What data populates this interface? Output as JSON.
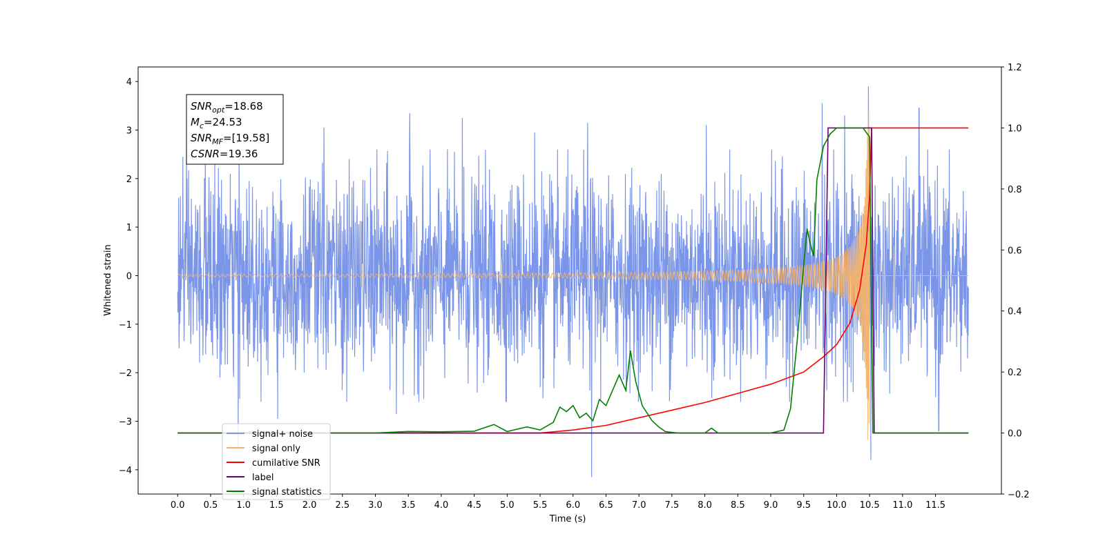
{
  "chart_data": {
    "type": "line",
    "title": "",
    "xlabel": "Time (s)",
    "ylabel": "Whitened strain",
    "ylabel_right": "",
    "xlim": [
      -0.6,
      12.5
    ],
    "ylim": [
      -4.5,
      4.3
    ],
    "ylim_right": [
      -0.2,
      1.2
    ],
    "x_ticks": [
      0.0,
      0.5,
      1.0,
      1.5,
      2.0,
      2.5,
      3.0,
      3.5,
      4.0,
      4.5,
      5.0,
      5.5,
      6.0,
      6.5,
      7.0,
      7.5,
      8.0,
      8.5,
      9.0,
      9.5,
      10.0,
      10.5,
      11.0,
      11.5
    ],
    "x_tick_labels": [
      "0.0",
      "0.5",
      "1.0",
      "1.5",
      "2.0",
      "2.5",
      "3.0",
      "3.5",
      "4.0",
      "4.5",
      "5.0",
      "5.5",
      "6.0",
      "6.5",
      "7.0",
      "7.5",
      "8.0",
      "8.5",
      "9.0",
      "9.5",
      "10.0",
      "10.5",
      "11.0",
      "11.5"
    ],
    "y_ticks": [
      -4,
      -3,
      -2,
      -1,
      0,
      1,
      2,
      3,
      4
    ],
    "y_tick_labels": [
      "−4",
      "−3",
      "−2",
      "−1",
      "0",
      "1",
      "2",
      "3",
      "4"
    ],
    "y_ticks_right": [
      -0.2,
      0.0,
      0.2,
      0.4,
      0.6,
      0.8,
      1.0,
      1.2
    ],
    "y_tick_labels_right": [
      "−0.2",
      "0.0",
      "0.2",
      "0.4",
      "0.6",
      "0.8",
      "1.0",
      "1.2"
    ],
    "grid": false,
    "legend_position": "lower-left",
    "annotation": {
      "position": "upper-left",
      "lines": [
        {
          "main": "SNR",
          "sub": "opt",
          "value": "=18.68"
        },
        {
          "main": "M",
          "sub": "c",
          "value": "=24.53"
        },
        {
          "main": "SNR",
          "sub": "MF",
          "value": "=[19.58]"
        },
        {
          "main": "CSNR",
          "sub": "",
          "value": "=19.36"
        }
      ]
    },
    "series": [
      {
        "name": "signal+ noise",
        "axis": "left",
        "color": "#7b96e8",
        "kind": "noise_band",
        "x_range": [
          0.0,
          12.0
        ],
        "typical_envelope": 1.8,
        "sampled_peaks": [
          [
            0.08,
            2.45
          ],
          [
            0.42,
            2.85
          ],
          [
            0.92,
            -3.55
          ],
          [
            1.52,
            -2.95
          ],
          [
            2.22,
            3.05
          ],
          [
            3.32,
            -2.85
          ],
          [
            3.52,
            3.35
          ],
          [
            4.32,
            3.25
          ],
          [
            5.42,
            2.95
          ],
          [
            6.22,
            3.15
          ],
          [
            6.28,
            -4.15
          ],
          [
            8.02,
            3.1
          ],
          [
            9.78,
            3.55
          ],
          [
            10.12,
            3.3
          ],
          [
            10.48,
            3.9
          ],
          [
            10.52,
            -3.8
          ],
          [
            11.25,
            3.45
          ],
          [
            11.55,
            -3.2
          ]
        ]
      },
      {
        "name": "signal only",
        "axis": "left",
        "color": "#f5b36b",
        "kind": "chirp",
        "x_range": [
          0.0,
          12.0
        ],
        "merger_time": 10.5,
        "peak_amplitude": 3.45
      },
      {
        "name": "cumilative SNR",
        "axis": "right",
        "color": "#ff0000",
        "x": [
          0.0,
          5.5,
          6.0,
          6.5,
          7.0,
          7.5,
          8.0,
          8.5,
          9.0,
          9.5,
          9.8,
          10.0,
          10.2,
          10.35,
          10.45,
          10.5,
          10.53,
          10.6,
          11.0,
          11.5,
          12.0
        ],
        "y": [
          0.0,
          0.0,
          0.01,
          0.025,
          0.05,
          0.075,
          0.1,
          0.13,
          0.16,
          0.2,
          0.25,
          0.29,
          0.36,
          0.47,
          0.62,
          0.78,
          1.0,
          1.0,
          1.0,
          1.0,
          1.0
        ]
      },
      {
        "name": "label",
        "axis": "right",
        "color": "#6a006a",
        "x": [
          0.0,
          9.8,
          9.87,
          10.53,
          10.57,
          12.0
        ],
        "y": [
          0.0,
          0.0,
          1.0,
          1.0,
          0.0,
          0.0
        ]
      },
      {
        "name": "signal statistics",
        "axis": "right",
        "color": "#007f00",
        "x": [
          0.0,
          3.0,
          3.5,
          4.0,
          4.5,
          4.8,
          5.0,
          5.3,
          5.5,
          5.7,
          5.8,
          5.9,
          6.0,
          6.1,
          6.2,
          6.3,
          6.4,
          6.5,
          6.6,
          6.7,
          6.8,
          6.87,
          6.95,
          7.05,
          7.2,
          7.3,
          7.4,
          7.5,
          7.6,
          8.0,
          8.1,
          8.2,
          9.0,
          9.2,
          9.3,
          9.4,
          9.5,
          9.55,
          9.6,
          9.65,
          9.7,
          9.8,
          9.9,
          10.0,
          10.4,
          10.5,
          10.55,
          10.6,
          12.0
        ],
        "y": [
          0.0,
          0.0,
          0.005,
          0.004,
          0.006,
          0.028,
          0.005,
          0.02,
          0.01,
          0.035,
          0.085,
          0.07,
          0.09,
          0.05,
          0.065,
          0.04,
          0.11,
          0.09,
          0.14,
          0.19,
          0.14,
          0.27,
          0.17,
          0.09,
          0.04,
          0.02,
          0.005,
          0.002,
          0.0,
          0.0,
          0.016,
          0.0,
          0.0,
          0.01,
          0.08,
          0.3,
          0.55,
          0.67,
          0.62,
          0.58,
          0.83,
          0.94,
          0.98,
          1.0,
          1.0,
          0.97,
          0.0,
          0.0,
          0.0
        ]
      }
    ]
  }
}
